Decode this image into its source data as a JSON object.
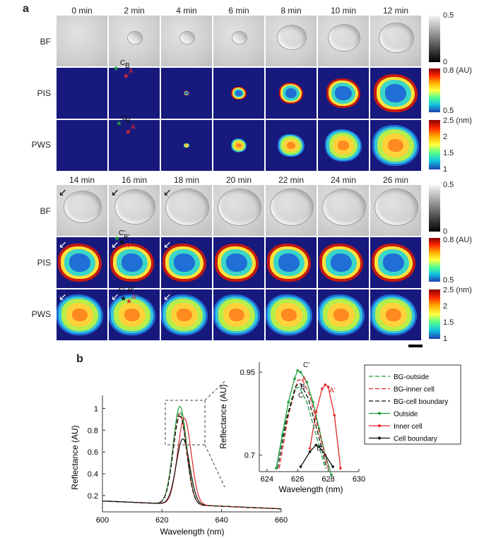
{
  "panel_a": {
    "letter": "a",
    "times_top": [
      "0 min",
      "2 min",
      "4 min",
      "6 min",
      "8 min",
      "10 min",
      "12 min"
    ],
    "times_bottom": [
      "14 min",
      "16 min",
      "18 min",
      "20 min",
      "22 min",
      "24 min",
      "26 min"
    ],
    "row_labels": [
      "BF",
      "PIS",
      "PWS"
    ],
    "colorbar_bf": {
      "max": "0.5",
      "min": "0"
    },
    "colorbar_pis": {
      "max": "0.8 (AU)",
      "min": "0.5"
    },
    "colorbar_pws": {
      "max": "2.5 (nm)",
      "t2": "2",
      "t15": "1.5",
      "min": "1"
    },
    "markers_top": {
      "c": "C",
      "b": "B",
      "a": "A"
    },
    "markers_bottom": {
      "c": "C'",
      "b": "B'",
      "a": "A'"
    }
  },
  "panel_b": {
    "letter": "b",
    "colors": {
      "outside": "#1e9b3c",
      "inner": "#e02828",
      "boundary": "#111111"
    },
    "legend": [
      "BG-outside",
      "BG-inner cell",
      "BG-cell boundary",
      "Outside",
      "Inner cell",
      "Cell boundary"
    ],
    "inset_labels": {
      "c_prime": "C'",
      "a": "A",
      "b": "B",
      "c": "C",
      "a_prime": "A'",
      "b_prime": "B'"
    }
  },
  "chart_data": [
    {
      "type": "line",
      "xlabel": "Wavelength (nm)",
      "ylabel": "Reflectance (AU)",
      "xlim": [
        600,
        660
      ],
      "ylim": [
        0.05,
        1.12
      ],
      "xticks": [
        "600",
        "620",
        "640",
        "660"
      ],
      "yticks": [
        "0.2",
        "0.4",
        "0.6",
        "0.8",
        "1"
      ],
      "series": [
        {
          "name": "Outside",
          "peak_x": 626.0,
          "peak_y": 1.02
        },
        {
          "name": "Inner cell",
          "peak_x": 627.5,
          "peak_y": 0.91
        },
        {
          "name": "Cell boundary",
          "peak_x": 627.0,
          "peak_y": 0.72
        },
        {
          "name": "BG-outside",
          "peak_x": 626.0,
          "peak_y": 0.97
        },
        {
          "name": "BG-inner cell",
          "peak_x": 626.0,
          "peak_y": 0.95
        },
        {
          "name": "BG-cell boundary",
          "peak_x": 626.0,
          "peak_y": 0.93
        }
      ]
    },
    {
      "type": "line",
      "xlabel": "Wavelength (nm)",
      "ylabel": "Reflectance (AU)",
      "xlim": [
        623.5,
        630
      ],
      "ylim": [
        0.65,
        0.98
      ],
      "xticks": [
        "624",
        "626",
        "628",
        "630"
      ],
      "yticks": [
        "0.7",
        "0.95"
      ],
      "series": [
        {
          "name": "Outside",
          "x": [
            624.6,
            625.0,
            625.4,
            625.8,
            626.0,
            626.2,
            626.6,
            627.0,
            627.4,
            627.8,
            628.2
          ],
          "y": [
            0.66,
            0.76,
            0.86,
            0.93,
            0.955,
            0.95,
            0.92,
            0.86,
            0.78,
            0.7,
            0.64
          ]
        },
        {
          "name": "Inner cell",
          "x": [
            626.8,
            627.2,
            627.6,
            627.8,
            628.0,
            628.4,
            628.8
          ],
          "y": [
            0.72,
            0.83,
            0.9,
            0.912,
            0.905,
            0.82,
            0.66
          ]
        },
        {
          "name": "Cell boundary",
          "x": [
            626.2,
            626.8,
            627.2,
            627.4,
            627.8,
            628.3
          ],
          "y": [
            0.665,
            0.71,
            0.73,
            0.726,
            0.7,
            0.665
          ]
        },
        {
          "name": "BG-outside",
          "x": [
            624.6,
            625.2,
            625.8,
            626.1,
            626.6,
            627.2,
            627.8
          ],
          "y": [
            0.66,
            0.8,
            0.9,
            0.905,
            0.86,
            0.76,
            0.66
          ]
        },
        {
          "name": "BG-inner cell",
          "x": [
            624.8,
            625.4,
            626.0,
            626.3,
            626.8,
            627.4,
            628.0
          ],
          "y": [
            0.66,
            0.82,
            0.925,
            0.928,
            0.88,
            0.77,
            0.66
          ]
        },
        {
          "name": "BG-cell boundary",
          "x": [
            624.7,
            625.3,
            625.9,
            626.2,
            626.7,
            627.3,
            627.9
          ],
          "y": [
            0.66,
            0.81,
            0.91,
            0.915,
            0.87,
            0.77,
            0.66
          ]
        }
      ]
    }
  ]
}
